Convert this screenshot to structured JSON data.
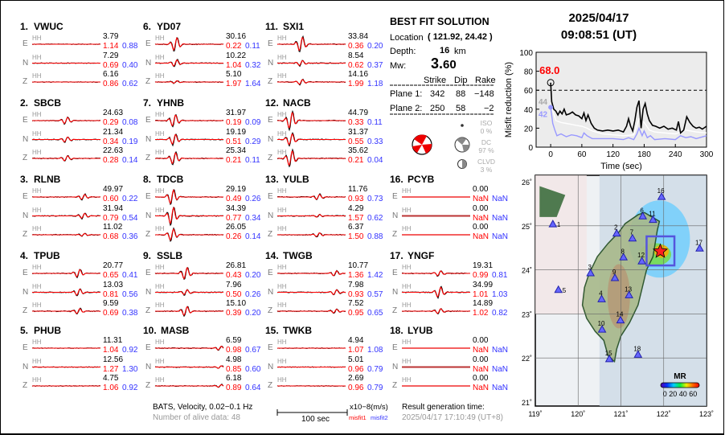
{
  "header": {
    "date": "2025/04/17",
    "time": "09:08:51  (UT)"
  },
  "stations": [
    {
      "num": "1.",
      "name": "VWUC",
      "traces": [
        {
          "comp": "E",
          "band": "HH",
          "amp": "3.79",
          "m1": "1.14",
          "m2": "0.88"
        },
        {
          "comp": "N",
          "band": "HH",
          "amp": "7.29",
          "m1": "0.69",
          "m2": "0.40"
        },
        {
          "comp": "Z",
          "band": "HH",
          "amp": "6.16",
          "m1": "0.86",
          "m2": "0.62"
        }
      ]
    },
    {
      "num": "2.",
      "name": "SBCB",
      "traces": [
        {
          "comp": "E",
          "band": "HH",
          "amp": "24.63",
          "m1": "0.29",
          "m2": "0.08"
        },
        {
          "comp": "N",
          "band": "HH",
          "amp": "21.34",
          "m1": "0.34",
          "m2": "0.19"
        },
        {
          "comp": "Z",
          "band": "HH",
          "amp": "22.63",
          "m1": "0.28",
          "m2": "0.14"
        }
      ]
    },
    {
      "num": "3.",
      "name": "RLNB",
      "traces": [
        {
          "comp": "E",
          "band": "HH",
          "amp": "49.97",
          "m1": "0.60",
          "m2": "0.22"
        },
        {
          "comp": "N",
          "band": "HH",
          "amp": "31.94",
          "m1": "0.79",
          "m2": "0.54"
        },
        {
          "comp": "Z",
          "band": "HH",
          "amp": "11.02",
          "m1": "0.68",
          "m2": "0.36"
        }
      ]
    },
    {
      "num": "4.",
      "name": "TPUB",
      "traces": [
        {
          "comp": "E",
          "band": "HH",
          "amp": "20.77",
          "m1": "0.65",
          "m2": "0.41"
        },
        {
          "comp": "N",
          "band": "HH",
          "amp": "13.03",
          "m1": "0.81",
          "m2": "0.56"
        },
        {
          "comp": "Z",
          "band": "HH",
          "amp": "9.59",
          "m1": "0.69",
          "m2": "0.38"
        }
      ]
    },
    {
      "num": "5.",
      "name": "PHUB",
      "traces": [
        {
          "comp": "E",
          "band": "HH",
          "amp": "11.31",
          "m1": "1.04",
          "m2": "0.92"
        },
        {
          "comp": "N",
          "band": "HH",
          "amp": "12.56",
          "m1": "1.27",
          "m2": "1.30"
        },
        {
          "comp": "Z",
          "band": "HH",
          "amp": "4.75",
          "m1": "1.06",
          "m2": "0.92"
        }
      ]
    },
    {
      "num": "6.",
      "name": "YD07",
      "traces": [
        {
          "comp": "E",
          "band": "HH",
          "amp": "30.16",
          "m1": "0.22",
          "m2": "0.11"
        },
        {
          "comp": "N",
          "band": "HH",
          "amp": "10.22",
          "m1": "1.04",
          "m2": "0.32"
        },
        {
          "comp": "Z",
          "band": "HH",
          "amp": "5.10",
          "m1": "1.97",
          "m2": "1.64"
        }
      ]
    },
    {
      "num": "7.",
      "name": "YHNB",
      "traces": [
        {
          "comp": "E",
          "band": "HH",
          "amp": "31.97",
          "m1": "0.19",
          "m2": "0.09"
        },
        {
          "comp": "N",
          "band": "HH",
          "amp": "19.19",
          "m1": "0.51",
          "m2": "0.29"
        },
        {
          "comp": "Z",
          "band": "HH",
          "amp": "25.34",
          "m1": "0.21",
          "m2": "0.11"
        }
      ]
    },
    {
      "num": "8.",
      "name": "TDCB",
      "traces": [
        {
          "comp": "E",
          "band": "HH",
          "amp": "29.19",
          "m1": "0.49",
          "m2": "0.26"
        },
        {
          "comp": "N",
          "band": "HH",
          "amp": "34.39",
          "m1": "0.77",
          "m2": "0.34"
        },
        {
          "comp": "Z",
          "band": "HH",
          "amp": "26.05",
          "m1": "0.26",
          "m2": "0.14"
        }
      ]
    },
    {
      "num": "9.",
      "name": "SSLB",
      "traces": [
        {
          "comp": "E",
          "band": "HH",
          "amp": "26.81",
          "m1": "0.43",
          "m2": "0.20"
        },
        {
          "comp": "N",
          "band": "HH",
          "amp": "7.96",
          "m1": "0.50",
          "m2": "0.26"
        },
        {
          "comp": "Z",
          "band": "HH",
          "amp": "15.10",
          "m1": "0.39",
          "m2": "0.20"
        }
      ]
    },
    {
      "num": "10.",
      "name": "MASB",
      "traces": [
        {
          "comp": "E",
          "band": "HH",
          "amp": "6.59",
          "m1": "0.98",
          "m2": "0.67"
        },
        {
          "comp": "N",
          "band": "HH",
          "amp": "4.98",
          "m1": "0.85",
          "m2": "0.60"
        },
        {
          "comp": "Z",
          "band": "HH",
          "amp": "6.18",
          "m1": "0.89",
          "m2": "0.64"
        }
      ]
    },
    {
      "num": "11.",
      "name": "SXI1",
      "traces": [
        {
          "comp": "E",
          "band": "HH",
          "amp": "33.84",
          "m1": "0.36",
          "m2": "0.20"
        },
        {
          "comp": "N",
          "band": "HH",
          "amp": "8.54",
          "m1": "0.62",
          "m2": "0.37"
        },
        {
          "comp": "Z",
          "band": "HH",
          "amp": "14.16",
          "m1": "1.99",
          "m2": "1.18"
        }
      ]
    },
    {
      "num": "12.",
      "name": "NACB",
      "traces": [
        {
          "comp": "E",
          "band": "HH",
          "amp": "44.79",
          "m1": "0.33",
          "m2": "0.11"
        },
        {
          "comp": "N",
          "band": "HH",
          "amp": "31.37",
          "m1": "0.55",
          "m2": "0.33"
        },
        {
          "comp": "Z",
          "band": "HH",
          "amp": "35.62",
          "m1": "0.21",
          "m2": "0.04"
        }
      ]
    },
    {
      "num": "13.",
      "name": "YULB",
      "traces": [
        {
          "comp": "E",
          "band": "HH",
          "amp": "11.76",
          "m1": "0.93",
          "m2": "0.73"
        },
        {
          "comp": "N",
          "band": "HH",
          "amp": "4.29",
          "m1": "1.57",
          "m2": "0.62"
        },
        {
          "comp": "Z",
          "band": "HH",
          "amp": "6.37",
          "m1": "1.50",
          "m2": "0.88"
        }
      ]
    },
    {
      "num": "14.",
      "name": "TWGB",
      "traces": [
        {
          "comp": "E",
          "band": "HH",
          "amp": "10.77",
          "m1": "1.36",
          "m2": "1.42"
        },
        {
          "comp": "N",
          "band": "HH",
          "amp": "7.98",
          "m1": "0.93",
          "m2": "0.57"
        },
        {
          "comp": "Z",
          "band": "HH",
          "amp": "7.52",
          "m1": "0.95",
          "m2": "0.65"
        }
      ]
    },
    {
      "num": "15.",
      "name": "TWKB",
      "traces": [
        {
          "comp": "E",
          "band": "HH",
          "amp": "4.94",
          "m1": "1.07",
          "m2": "1.08"
        },
        {
          "comp": "N",
          "band": "HH",
          "amp": "5.01",
          "m1": "0.96",
          "m2": "0.79"
        },
        {
          "comp": "Z",
          "band": "HH",
          "amp": "2.69",
          "m1": "0.96",
          "m2": "0.79"
        }
      ]
    },
    {
      "num": "16.",
      "name": "PCYB",
      "traces": [
        {
          "comp": "E",
          "band": "HH",
          "amp": "0.00",
          "m1": "NaN",
          "m2": "NaN"
        },
        {
          "comp": "N",
          "band": "HH",
          "amp": "0.00",
          "m1": "NaN",
          "m2": "NaN"
        },
        {
          "comp": "Z",
          "band": "HH",
          "amp": "0.00",
          "m1": "NaN",
          "m2": "NaN"
        }
      ]
    },
    {
      "num": "17.",
      "name": "YNGF",
      "traces": [
        {
          "comp": "E",
          "band": "HH",
          "amp": "19.31",
          "m1": "0.99",
          "m2": "0.81"
        },
        {
          "comp": "N",
          "band": "HH",
          "amp": "34.99",
          "m1": "1.01",
          "m2": "1.03"
        },
        {
          "comp": "Z",
          "band": "HH",
          "amp": "14.89",
          "m1": "1.02",
          "m2": "0.82"
        }
      ]
    },
    {
      "num": "18.",
      "name": "LYUB",
      "traces": [
        {
          "comp": "E",
          "band": "HH",
          "amp": "0.00",
          "m1": "NaN",
          "m2": "NaN"
        },
        {
          "comp": "N",
          "band": "HH",
          "amp": "0.00",
          "m1": "NaN",
          "m2": "NaN"
        },
        {
          "comp": "Z",
          "band": "HH",
          "amp": "0.00",
          "m1": "NaN",
          "m2": "NaN"
        }
      ]
    }
  ],
  "solution": {
    "title": "BEST FIT SOLUTION",
    "location_label": "Location",
    "location_value": "( 121.92,  24.42 )",
    "depth_label": "Depth:",
    "depth_value": "16",
    "depth_unit": "km",
    "mw_label": "Mw:",
    "mw_int": "3.",
    "mw_dec": "60",
    "cols": [
      "Strike",
      "Dip",
      "Rake"
    ],
    "planes": [
      {
        "label": "Plane 1:",
        "strike": "342",
        "dip": "88",
        "rake": "−148"
      },
      {
        "label": "Plane 2:",
        "strike": "250",
        "dip": "58",
        "rake": "−2"
      }
    ],
    "iso_label": "ISO",
    "iso_value": "0  %",
    "dc_label": "DC",
    "dc_value": "97 %",
    "clvd_label": "CLVD",
    "clvd_value": "3  %"
  },
  "footer": {
    "filter": "BATS, Velocity, 0.02−0.1 Hz",
    "alive": "Number of alive data: 48",
    "scale_label": "100 sec",
    "units": "x10−8(m/s)",
    "misfit1": "misfit1",
    "misfit2": "misfit2",
    "gen_label": "Result generation time:",
    "gen_time": "2025/04/17 17:10:49 (UT+8)"
  },
  "chart_data": {
    "type": "line",
    "xlabel": "Time (sec)",
    "ylabel": "Misfit reduction (%)",
    "xlim": [
      -28,
      300
    ],
    "ylim": [
      0,
      100
    ],
    "xticks": [
      0,
      60,
      120,
      180,
      240,
      300
    ],
    "yticks": [
      0,
      20,
      40,
      60,
      80,
      100
    ],
    "threshold": 60,
    "annotations": {
      "best": "68.0",
      "gray": "44",
      "blue": "42"
    },
    "series": [
      {
        "name": "best",
        "color": "#000000",
        "x": [
          0,
          2,
          6,
          10,
          14,
          18,
          22,
          26,
          30,
          36,
          42,
          48,
          54,
          60,
          64,
          68,
          72,
          78,
          84,
          90,
          100,
          110,
          120,
          130,
          140,
          146,
          150,
          154,
          158,
          162,
          166,
          170,
          174,
          178,
          182,
          186,
          190,
          196,
          202,
          210,
          218,
          226,
          234,
          242,
          246,
          250,
          256,
          262,
          268,
          274,
          280,
          286,
          292,
          300
        ],
        "y": [
          68,
          48,
          40,
          38,
          34,
          38,
          35,
          40,
          34,
          35,
          37,
          34,
          33,
          30,
          36,
          28,
          34,
          25,
          20,
          18,
          17,
          18,
          17,
          18,
          16,
          22,
          30,
          22,
          17,
          28,
          42,
          49,
          20,
          40,
          46,
          35,
          28,
          23,
          22,
          20,
          22,
          19,
          20,
          18,
          27,
          15,
          18,
          32,
          26,
          22,
          20,
          21,
          19,
          22
        ]
      },
      {
        "name": "median",
        "color": "#ffffff",
        "x": [
          0,
          6,
          10,
          20,
          30,
          40,
          50,
          60,
          70,
          80,
          100,
          120,
          140,
          160,
          170,
          180,
          190,
          200,
          220,
          240,
          260,
          280,
          300
        ],
        "y": [
          44,
          35,
          28,
          26,
          25,
          24,
          23,
          22,
          20,
          17,
          14,
          13,
          12,
          13,
          30,
          26,
          18,
          16,
          15,
          14,
          18,
          16,
          15
        ]
      },
      {
        "name": "other",
        "color": "#9999ff",
        "x": [
          0,
          4,
          8,
          12,
          20,
          30,
          40,
          50,
          60,
          64,
          70,
          80,
          100,
          120,
          140,
          150,
          160,
          166,
          170,
          176,
          180,
          186,
          192,
          200,
          220,
          240,
          250,
          260,
          270,
          280,
          300
        ],
        "y": [
          42,
          25,
          18,
          12,
          14,
          11,
          13,
          12,
          10,
          15,
          12,
          9,
          9,
          9,
          8,
          10,
          8,
          14,
          20,
          12,
          17,
          10,
          12,
          8,
          9,
          8,
          12,
          10,
          11,
          9,
          12
        ]
      }
    ]
  },
  "map": {
    "lon_ticks": [
      "119˚",
      "120˚",
      "121˚",
      "122˚",
      "123˚"
    ],
    "lat_ticks": [
      "26˚",
      "25˚",
      "24˚",
      "23˚",
      "22˚",
      "21˚"
    ],
    "colorbar_title": "MR",
    "colorbar_ticks": "0 20 40 60",
    "epicenter": {
      "lon": 121.92,
      "lat": 24.42
    },
    "stations": [
      {
        "label": "1",
        "lon": 119.41,
        "lat": 25.03
      },
      {
        "label": "2",
        "lon": 120.9,
        "lat": 24.82
      },
      {
        "label": "3",
        "lon": 120.29,
        "lat": 23.92
      },
      {
        "label": "4",
        "lon": 120.55,
        "lat": 23.33
      },
      {
        "label": "5",
        "lon": 119.54,
        "lat": 23.54
      },
      {
        "label": "6",
        "lon": 121.51,
        "lat": 25.21
      },
      {
        "label": "7",
        "lon": 121.27,
        "lat": 24.71
      },
      {
        "label": "8",
        "lon": 121.06,
        "lat": 24.28
      },
      {
        "label": "9",
        "lon": 120.86,
        "lat": 23.81
      },
      {
        "label": "10",
        "lon": 120.56,
        "lat": 22.64
      },
      {
        "label": "11",
        "lon": 121.75,
        "lat": 25.13
      },
      {
        "label": "12",
        "lon": 121.49,
        "lat": 24.19
      },
      {
        "label": "13",
        "lon": 121.19,
        "lat": 23.42
      },
      {
        "label": "14",
        "lon": 120.99,
        "lat": 22.85
      },
      {
        "label": "15",
        "lon": 120.73,
        "lat": 21.97
      },
      {
        "label": "16",
        "lon": 121.95,
        "lat": 25.65
      },
      {
        "label": "17",
        "lon": 122.84,
        "lat": 24.48
      },
      {
        "label": "18",
        "lon": 121.4,
        "lat": 22.07
      }
    ]
  }
}
